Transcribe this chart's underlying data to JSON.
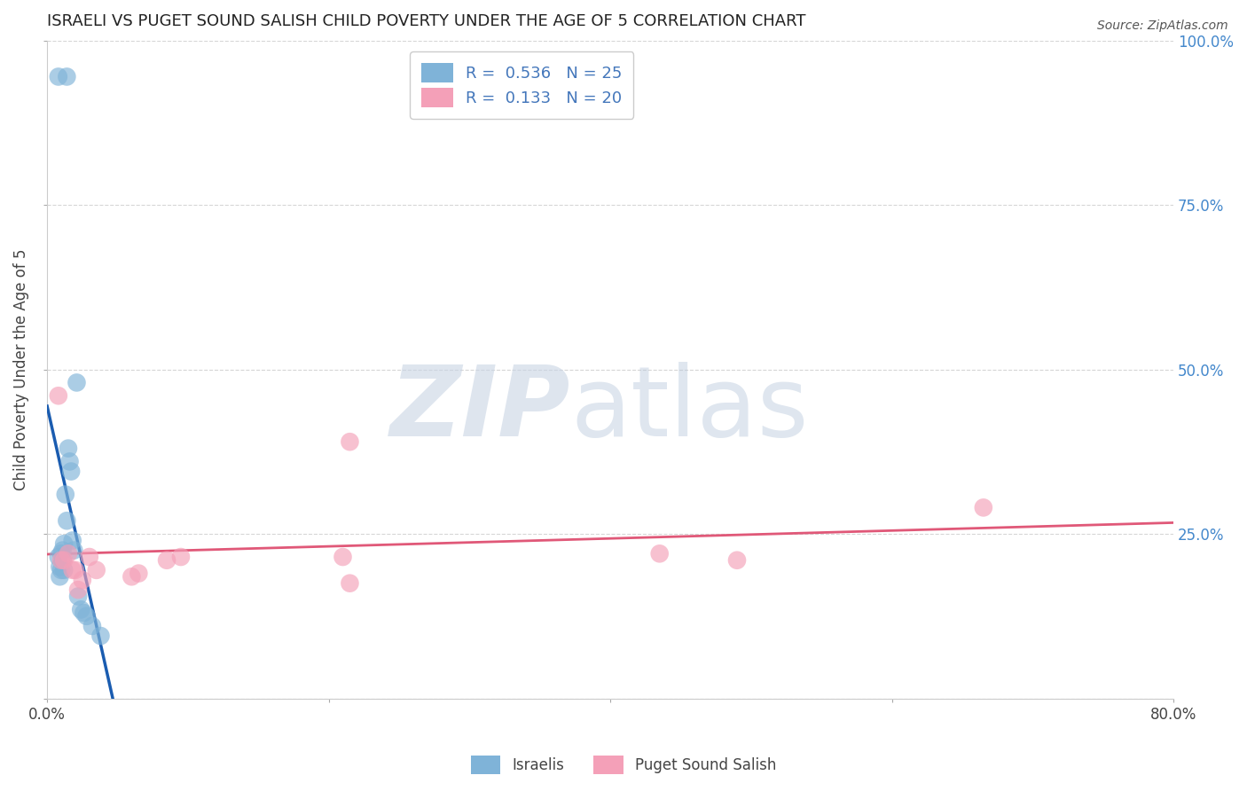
{
  "title": "ISRAELI VS PUGET SOUND SALISH CHILD POVERTY UNDER THE AGE OF 5 CORRELATION CHART",
  "source": "Source: ZipAtlas.com",
  "ylabel": "Child Poverty Under the Age of 5",
  "watermark_zip": "ZIP",
  "watermark_atlas": "atlas",
  "xlim": [
    0.0,
    0.8
  ],
  "ylim": [
    0.0,
    1.0
  ],
  "blue_color": "#7fb3d8",
  "pink_color": "#f4a0b8",
  "blue_line_color": "#1a5cb0",
  "pink_line_color": "#e05878",
  "israelis_x": [
    0.008,
    0.014,
    0.008,
    0.009,
    0.009,
    0.01,
    0.01,
    0.011,
    0.011,
    0.012,
    0.012,
    0.013,
    0.014,
    0.015,
    0.016,
    0.017,
    0.018,
    0.019,
    0.021,
    0.022,
    0.024,
    0.026,
    0.028,
    0.032,
    0.038
  ],
  "israelis_y": [
    0.945,
    0.945,
    0.215,
    0.2,
    0.185,
    0.22,
    0.195,
    0.225,
    0.21,
    0.235,
    0.195,
    0.31,
    0.27,
    0.38,
    0.36,
    0.345,
    0.24,
    0.225,
    0.48,
    0.155,
    0.135,
    0.13,
    0.125,
    0.11,
    0.095
  ],
  "salish_x": [
    0.008,
    0.01,
    0.012,
    0.015,
    0.018,
    0.02,
    0.022,
    0.025,
    0.03,
    0.035,
    0.06,
    0.065,
    0.085,
    0.095,
    0.21,
    0.215,
    0.215,
    0.435,
    0.49,
    0.665
  ],
  "salish_y": [
    0.46,
    0.21,
    0.21,
    0.22,
    0.195,
    0.195,
    0.165,
    0.18,
    0.215,
    0.195,
    0.185,
    0.19,
    0.21,
    0.215,
    0.215,
    0.175,
    0.39,
    0.22,
    0.21,
    0.29
  ],
  "blue_legend_label": "R =  0.536   N = 25",
  "pink_legend_label": "R =  0.133   N = 20",
  "legend_text_color": "#4477bb",
  "bottom_legend_blue": "Israelis",
  "bottom_legend_pink": "Puget Sound Salish"
}
